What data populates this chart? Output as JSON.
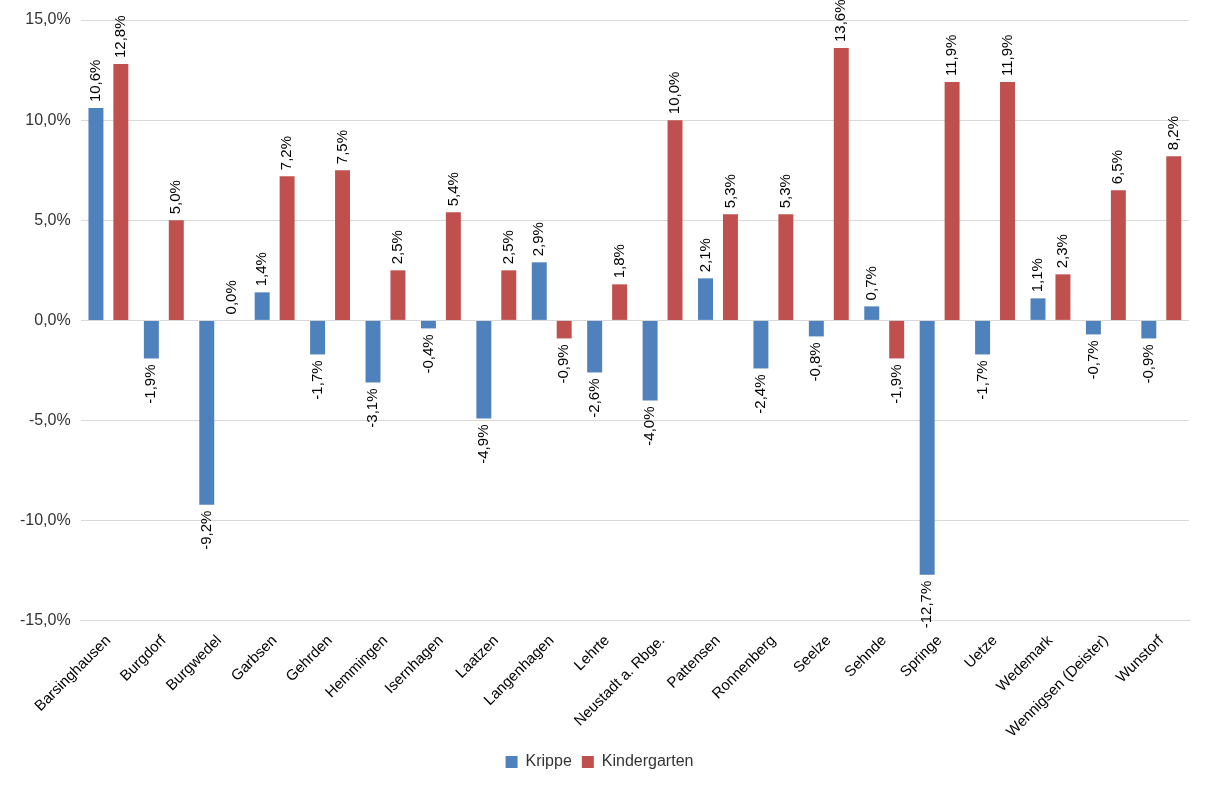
{
  "chart_data": {
    "type": "bar",
    "categories": [
      "Barsinghausen",
      "Burgdorf",
      "Burgwedel",
      "Garbsen",
      "Gehrden",
      "Hemmingen",
      "Isernhagen",
      "Laatzen",
      "Langenhagen",
      "Lehrte",
      "Neustadt a. Rbge.",
      "Pattensen",
      "Ronnenberg",
      "Seelze",
      "Sehnde",
      "Springe",
      "Uetze",
      "Wedemark",
      "Wennigsen (Deister)",
      "Wunstorf"
    ],
    "series": [
      {
        "name": "Krippe",
        "color": "#4f81bd",
        "values": [
          10.6,
          -1.9,
          -9.2,
          1.4,
          -1.7,
          -3.1,
          -0.4,
          -4.9,
          2.9,
          -2.6,
          -4.0,
          2.1,
          -2.4,
          -0.8,
          0.7,
          -12.7,
          -1.7,
          1.1,
          -0.7,
          -0.9
        ],
        "value_labels": [
          "10,6%",
          "-1,9%",
          "-9,2%",
          "1,4%",
          "-1,7%",
          "-3,1%",
          "-0,4%",
          "-4,9%",
          "2,9%",
          "-2,6%",
          "-4,0%",
          "2,1%",
          "-2,4%",
          "-0,8%",
          "0,7%",
          "-12,7%",
          "-1,7%",
          "1,1%",
          "-0,7%",
          "-0,9%"
        ]
      },
      {
        "name": "Kindergarten",
        "color": "#c0504d",
        "values": [
          12.8,
          5.0,
          0.0,
          7.2,
          7.5,
          2.5,
          5.4,
          2.5,
          -0.9,
          1.8,
          10.0,
          5.3,
          5.3,
          13.6,
          -1.9,
          11.9,
          11.9,
          2.3,
          6.5,
          8.2
        ],
        "value_labels": [
          "12,8%",
          "5,0%",
          "0,0%",
          "7,2%",
          "7,5%",
          "2,5%",
          "5,4%",
          "2,5%",
          "-0,9%",
          "1,8%",
          "10,0%",
          "5,3%",
          "5,3%",
          "13,6%",
          "-1,9%",
          "11,9%",
          "11,9%",
          "2,3%",
          "6,5%",
          "8,2%"
        ]
      }
    ],
    "ylim": [
      -15,
      15
    ],
    "yticks": [
      {
        "value": -15,
        "label": "-15,0%"
      },
      {
        "value": -10,
        "label": "-10,0%"
      },
      {
        "value": -5,
        "label": "-5,0%"
      },
      {
        "value": 0,
        "label": "0,0%"
      },
      {
        "value": 5,
        "label": "5,0%"
      },
      {
        "value": 10,
        "label": "10,0%"
      },
      {
        "value": 15,
        "label": "15,0%"
      }
    ],
    "grid": "y",
    "legend": "bottom"
  }
}
